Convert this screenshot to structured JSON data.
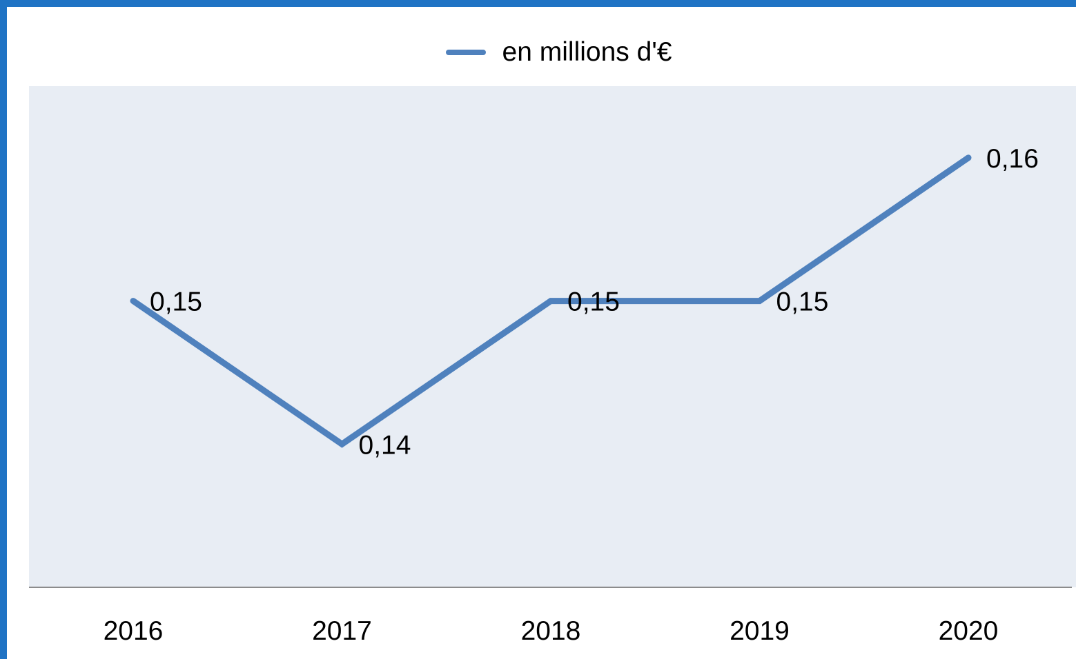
{
  "chart_data": {
    "type": "line",
    "categories": [
      "2016",
      "2017",
      "2018",
      "2019",
      "2020"
    ],
    "series": [
      {
        "name": "en millions d'€",
        "values": [
          0.15,
          0.14,
          0.15,
          0.15,
          0.16
        ],
        "labels": [
          "0,15",
          "0,14",
          "0,15",
          "0,15",
          "0,16"
        ]
      }
    ],
    "ylim": [
      0.13,
      0.165
    ],
    "grid": false,
    "legend_position": "top",
    "colors": {
      "series": "#4f81bd",
      "plot_background": "#e8edf4",
      "frame": "#1f73c4"
    }
  }
}
